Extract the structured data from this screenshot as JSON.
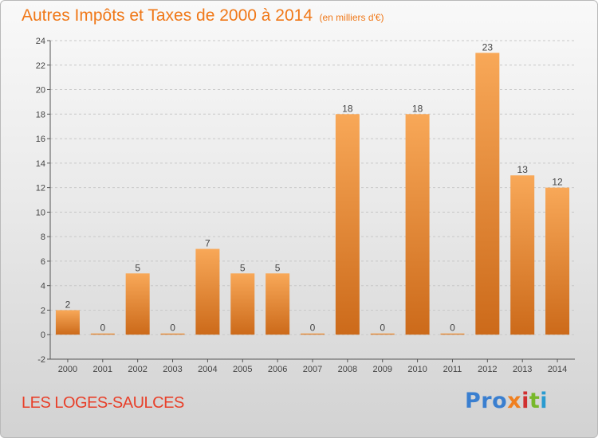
{
  "header": {
    "title": "Autres Impôts et Taxes de 2000 à 2014",
    "subtitle": "(en milliers d'€)"
  },
  "footer": {
    "commune": "LES LOGES-SAULCES",
    "logo_letters": [
      "Pro",
      "x",
      "i",
      "t",
      "i"
    ]
  },
  "colors": {
    "title": "#f07818",
    "commune": "#e8402a",
    "bar_top": "#f8a858",
    "bar_bottom": "#cc6a1a",
    "axis": "#555555",
    "grid": "#c8c8c8"
  },
  "chart_data": {
    "type": "bar",
    "title": "Autres Impôts et Taxes de 2000 à 2014",
    "subtitle": "(en milliers d'€)",
    "categories": [
      "2000",
      "2001",
      "2002",
      "2003",
      "2004",
      "2005",
      "2006",
      "2007",
      "2008",
      "2009",
      "2010",
      "2011",
      "2012",
      "2013",
      "2014"
    ],
    "values": [
      2,
      0,
      5,
      0,
      7,
      5,
      5,
      0,
      18,
      0,
      18,
      0,
      23,
      13,
      12
    ],
    "data_labels": [
      "2",
      "0",
      "5",
      "0",
      "7",
      "5",
      "5",
      "0",
      "18",
      "0",
      "18",
      "0",
      "23",
      "13",
      "12"
    ],
    "ylim": [
      -2,
      24
    ],
    "yticks": [
      -2,
      0,
      2,
      4,
      6,
      8,
      10,
      12,
      14,
      16,
      18,
      20,
      22,
      24
    ],
    "xlabel": "",
    "ylabel": "",
    "grid": "horizontal dashed"
  }
}
